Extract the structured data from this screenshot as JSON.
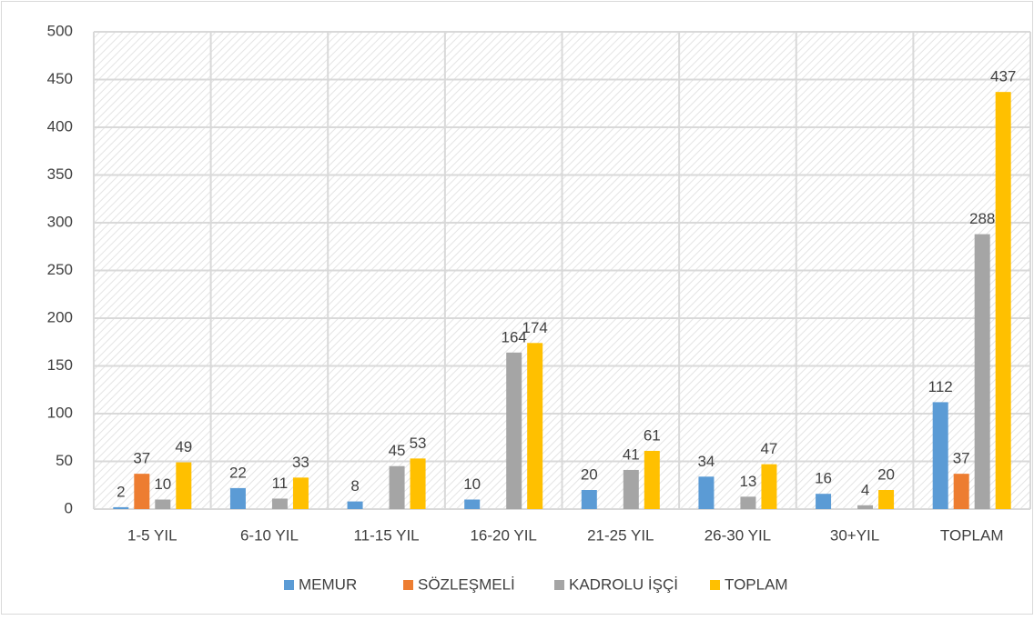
{
  "chart_data": {
    "type": "bar",
    "categories": [
      "1-5 YIL",
      "6-10 YIL",
      "11-15 YIL",
      "16-20 YIL",
      "21-25 YIL",
      "26-30 YIL",
      "30+YIL",
      "TOPLAM"
    ],
    "series": [
      {
        "name": "MEMUR",
        "color": "#5b9bd5",
        "values": [
          2,
          22,
          8,
          10,
          20,
          34,
          16,
          112
        ]
      },
      {
        "name": "SÖZLEŞMELİ",
        "color": "#ed7d31",
        "values": [
          37,
          null,
          null,
          null,
          null,
          null,
          null,
          37
        ]
      },
      {
        "name": "KADROLU İŞÇİ",
        "color": "#a5a5a5",
        "values": [
          10,
          11,
          45,
          164,
          41,
          13,
          4,
          288
        ]
      },
      {
        "name": "TOPLAM",
        "color": "#ffc000",
        "values": [
          49,
          33,
          53,
          174,
          61,
          47,
          20,
          437
        ]
      }
    ],
    "ylim": [
      0,
      500
    ],
    "yticks": [
      0,
      50,
      100,
      150,
      200,
      250,
      300,
      350,
      400,
      450,
      500
    ],
    "grid": true,
    "legend": "bottom"
  }
}
